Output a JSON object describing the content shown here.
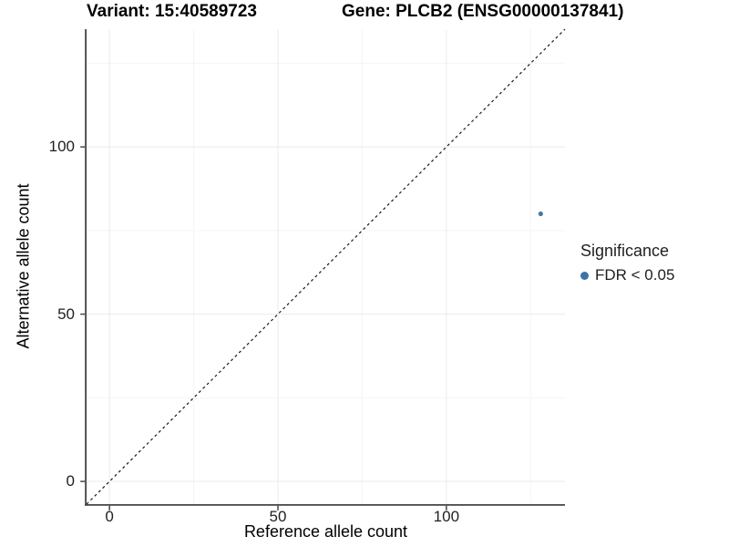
{
  "title": {
    "left": "Variant: 15:40589723",
    "right": "Gene: PLCB2 (ENSG00000137841)"
  },
  "legend": {
    "title": "Significance",
    "items": [
      {
        "label": "FDR < 0.05",
        "color": "#3b73a8"
      }
    ]
  },
  "chart_data": {
    "type": "scatter",
    "title": "Variant: 15:40589723   Gene: PLCB2 (ENSG00000137841)",
    "xlabel": "Reference allele count",
    "ylabel": "Alternative allele count",
    "xlim": [
      -6.8,
      135.2
    ],
    "ylim": [
      -6.8,
      135.2
    ],
    "x_ticks": [
      0,
      50,
      100
    ],
    "y_ticks": [
      0,
      50,
      100
    ],
    "minor_gridlines": [
      25,
      75,
      125
    ],
    "grid": true,
    "legend_position": "right",
    "identity_line": {
      "style": "dashed",
      "slope": 1,
      "intercept": 0
    },
    "series": [
      {
        "name": "FDR < 0.05",
        "color": "#4678a8",
        "points": [
          {
            "x": 128,
            "y": 80
          }
        ],
        "point_radius": 2.6
      }
    ],
    "colors": {
      "axis_line": "#454545",
      "major_grid": "#ebebeb",
      "minor_grid": "#f5f5f5",
      "identity_line": "#1a1a1a"
    }
  }
}
